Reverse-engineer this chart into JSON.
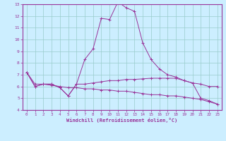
{
  "xlabel": "Windchill (Refroidissement éolien,°C)",
  "xlim": [
    -0.5,
    23.5
  ],
  "ylim": [
    4,
    13
  ],
  "yticks": [
    4,
    5,
    6,
    7,
    8,
    9,
    10,
    11,
    12,
    13
  ],
  "xticks": [
    0,
    1,
    2,
    3,
    4,
    5,
    6,
    7,
    8,
    9,
    10,
    11,
    12,
    13,
    14,
    15,
    16,
    17,
    18,
    19,
    20,
    21,
    22,
    23
  ],
  "bg_color": "#cceeff",
  "line_color": "#993399",
  "grid_color": "#99cccc",
  "line1_x": [
    0,
    1,
    2,
    3,
    4,
    5,
    6,
    7,
    8,
    9,
    10,
    11,
    12,
    13,
    14,
    15,
    16,
    17,
    18,
    19,
    20,
    21,
    22,
    23
  ],
  "line1_y": [
    7.2,
    6.0,
    6.2,
    6.2,
    5.9,
    5.2,
    6.2,
    8.3,
    9.2,
    11.8,
    11.7,
    13.2,
    12.7,
    12.4,
    9.7,
    8.3,
    7.5,
    7.0,
    6.8,
    6.5,
    6.3,
    5.0,
    4.8,
    4.5
  ],
  "line2_x": [
    0,
    1,
    2,
    3,
    4,
    5,
    6,
    7,
    8,
    9,
    10,
    11,
    12,
    13,
    14,
    15,
    16,
    17,
    18,
    19,
    20,
    21,
    22,
    23
  ],
  "line2_y": [
    7.2,
    6.0,
    6.2,
    6.2,
    5.9,
    5.2,
    6.2,
    6.2,
    6.3,
    6.4,
    6.5,
    6.5,
    6.6,
    6.6,
    6.65,
    6.7,
    6.7,
    6.7,
    6.7,
    6.5,
    6.3,
    6.2,
    6.0,
    6.0
  ],
  "line3_x": [
    0,
    1,
    2,
    3,
    4,
    5,
    6,
    7,
    8,
    9,
    10,
    11,
    12,
    13,
    14,
    15,
    16,
    17,
    18,
    19,
    20,
    21,
    22,
    23
  ],
  "line3_y": [
    7.2,
    6.2,
    6.2,
    6.1,
    6.0,
    5.9,
    5.9,
    5.8,
    5.8,
    5.7,
    5.7,
    5.6,
    5.6,
    5.5,
    5.4,
    5.3,
    5.3,
    5.2,
    5.2,
    5.1,
    5.0,
    4.9,
    4.7,
    4.5
  ]
}
